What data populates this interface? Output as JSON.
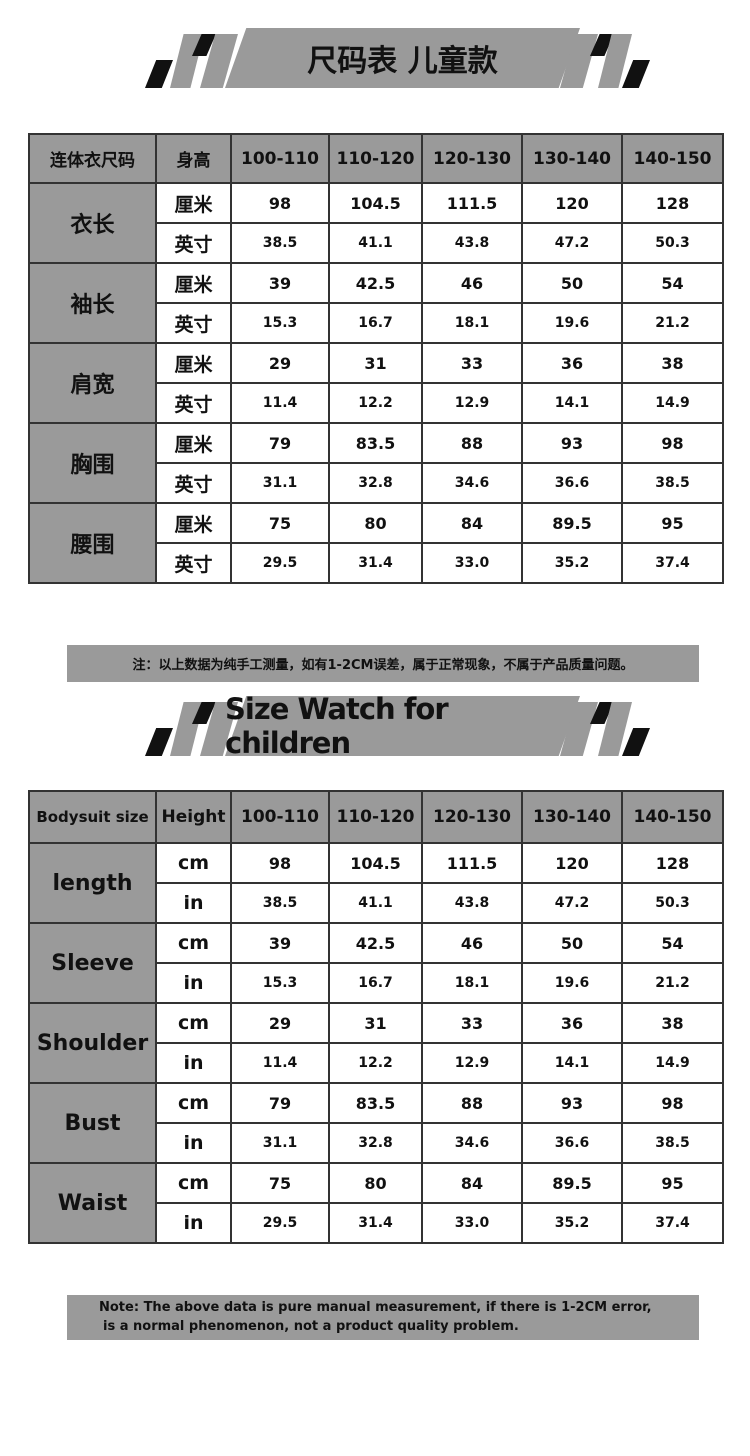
{
  "cn": {
    "title": "尺码表 儿童款",
    "header": [
      "连体衣尺码",
      "身高",
      "100-110",
      "110-120",
      "120-130",
      "130-140",
      "140-150"
    ],
    "rows": [
      {
        "label": "衣长",
        "cm_unit": "厘米",
        "in_unit": "英寸",
        "cm": [
          "98",
          "104.5",
          "111.5",
          "120",
          "128"
        ],
        "in": [
          "38.5",
          "41.1",
          "43.8",
          "47.2",
          "50.3"
        ]
      },
      {
        "label": "袖长",
        "cm_unit": "厘米",
        "in_unit": "英寸",
        "cm": [
          "39",
          "42.5",
          "46",
          "50",
          "54"
        ],
        "in": [
          "15.3",
          "16.7",
          "18.1",
          "19.6",
          "21.2"
        ]
      },
      {
        "label": "肩宽",
        "cm_unit": "厘米",
        "in_unit": "英寸",
        "cm": [
          "29",
          "31",
          "33",
          "36",
          "38"
        ],
        "in": [
          "11.4",
          "12.2",
          "12.9",
          "14.1",
          "14.9"
        ]
      },
      {
        "label": "胸围",
        "cm_unit": "厘米",
        "in_unit": "英寸",
        "cm": [
          "79",
          "83.5",
          "88",
          "93",
          "98"
        ],
        "in": [
          "31.1",
          "32.8",
          "34.6",
          "36.6",
          "38.5"
        ]
      },
      {
        "label": "腰围",
        "cm_unit": "厘米",
        "in_unit": "英寸",
        "cm": [
          "75",
          "80",
          "84",
          "89.5",
          "95"
        ],
        "in": [
          "29.5",
          "31.4",
          "33.0",
          "35.2",
          "37.4"
        ]
      }
    ],
    "note": "注：以上数据为纯手工测量，如有1-2CM误差，属于正常现象，不属于产品质量问题。"
  },
  "en": {
    "title": "Size Watch for children",
    "header": [
      "Bodysuit size",
      "Height",
      "100-110",
      "110-120",
      "120-130",
      "130-140",
      "140-150"
    ],
    "rows": [
      {
        "label": "length",
        "cm_unit": "cm",
        "in_unit": "in",
        "cm": [
          "98",
          "104.5",
          "111.5",
          "120",
          "128"
        ],
        "in": [
          "38.5",
          "41.1",
          "43.8",
          "47.2",
          "50.3"
        ]
      },
      {
        "label": "Sleeve",
        "cm_unit": "cm",
        "in_unit": "in",
        "cm": [
          "39",
          "42.5",
          "46",
          "50",
          "54"
        ],
        "in": [
          "15.3",
          "16.7",
          "18.1",
          "19.6",
          "21.2"
        ]
      },
      {
        "label": "Shoulder",
        "cm_unit": "cm",
        "in_unit": "in",
        "cm": [
          "29",
          "31",
          "33",
          "36",
          "38"
        ],
        "in": [
          "11.4",
          "12.2",
          "12.9",
          "14.1",
          "14.9"
        ]
      },
      {
        "label": "Bust",
        "cm_unit": "cm",
        "in_unit": "in",
        "cm": [
          "79",
          "83.5",
          "88",
          "93",
          "98"
        ],
        "in": [
          "31.1",
          "32.8",
          "34.6",
          "36.6",
          "38.5"
        ]
      },
      {
        "label": "Waist",
        "cm_unit": "cm",
        "in_unit": "in",
        "cm": [
          "75",
          "80",
          "84",
          "89.5",
          "95"
        ],
        "in": [
          "29.5",
          "31.4",
          "33.0",
          "35.2",
          "37.4"
        ]
      }
    ],
    "note_line1": "Note: The above data is pure manual measurement, if there is 1-2CM error,",
    "note_line2": "is a normal phenomenon, not a product quality problem."
  },
  "colors": {
    "gray": "#9a9a9a",
    "border": "#333333"
  }
}
